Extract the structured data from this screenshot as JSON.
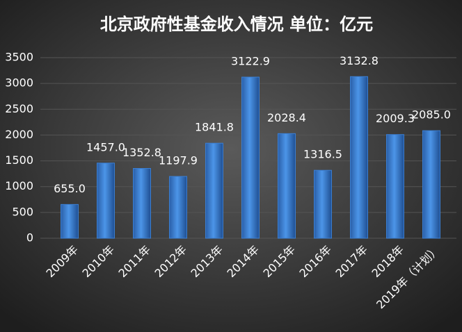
{
  "chart_data": {
    "type": "bar",
    "title": "北京政府性基金收入情况 单位：亿元",
    "categories": [
      "2009年",
      "2010年",
      "2011年",
      "2012年",
      "2013年",
      "2014年",
      "2015年",
      "2016年",
      "2017年",
      "2018年",
      "2019年（计划）"
    ],
    "values": [
      655,
      1457,
      1352.8,
      1197.9,
      1841.8,
      3122.9,
      2028.4,
      1316.5,
      3132.8,
      2009.3,
      2085
    ],
    "value_labels": [
      "655.0",
      "1457.0",
      "1352.8",
      "1197.9",
      "1841.8",
      "3122.9",
      "2028.4",
      "1316.5",
      "3132.8",
      "2009.3",
      "2085.0"
    ],
    "color": "#3b7fd4",
    "ylim": [
      0,
      3500
    ],
    "yticks": [
      0,
      500,
      1000,
      1500,
      2000,
      2500,
      3000,
      3500
    ],
    "grid": true
  }
}
